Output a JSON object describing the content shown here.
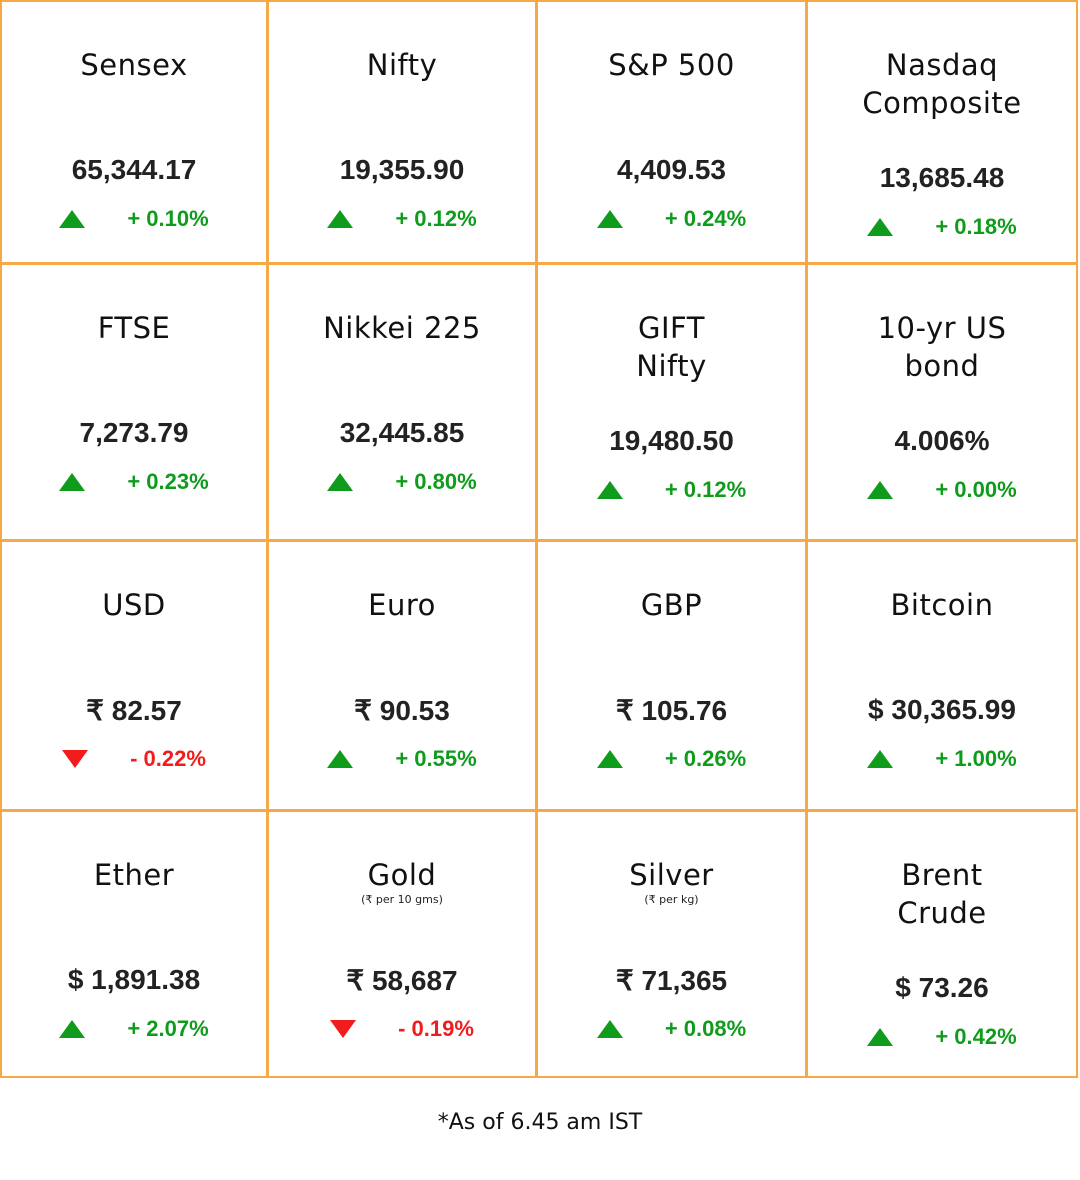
{
  "colors": {
    "border": "#F5A947",
    "up": "#0F9B1C",
    "down": "#F21C1C"
  },
  "cells": [
    {
      "title": "Sensex",
      "value": "65,344.17",
      "direction": "up",
      "change": "+ 0.10%"
    },
    {
      "title": "Nifty",
      "value": "19,355.90",
      "direction": "up",
      "change": "+ 0.12%"
    },
    {
      "title": "S&P 500",
      "value": "4,409.53",
      "direction": "up",
      "change": "+ 0.24%"
    },
    {
      "title": "Nasdaq\nComposite",
      "value": "13,685.48",
      "direction": "up",
      "change": "+ 0.18%"
    },
    {
      "title": "FTSE",
      "value": "7,273.79",
      "direction": "up",
      "change": "+ 0.23%"
    },
    {
      "title": "Nikkei 225",
      "value": "32,445.85",
      "direction": "up",
      "change": "+ 0.80%"
    },
    {
      "title": "GIFT\nNifty",
      "value": "19,480.50",
      "direction": "up",
      "change": "+ 0.12%"
    },
    {
      "title": "10-yr US\nbond",
      "value": "4.006%",
      "direction": "up",
      "change": "+ 0.00%"
    },
    {
      "title": "USD",
      "value": "₹ 82.57",
      "direction": "down",
      "change": "- 0.22%"
    },
    {
      "title": "Euro",
      "value": "₹ 90.53",
      "direction": "up",
      "change": "+ 0.55%"
    },
    {
      "title": "GBP",
      "value": "₹ 105.76",
      "direction": "up",
      "change": "+ 0.26%"
    },
    {
      "title": "Bitcoin",
      "value": "$ 30,365.99",
      "direction": "up",
      "change": "+ 1.00%"
    },
    {
      "title": "Ether",
      "value": "$ 1,891.38",
      "direction": "up",
      "change": "+ 2.07%"
    },
    {
      "title": "Gold",
      "subtitle": "(₹ per 10 gms)",
      "value": "₹ 58,687",
      "direction": "down",
      "change": "- 0.19%"
    },
    {
      "title": "Silver",
      "subtitle": "(₹ per kg)",
      "value": "₹ 71,365",
      "direction": "up",
      "change": "+ 0.08%"
    },
    {
      "title": "Brent\nCrude",
      "value": "$ 73.26",
      "direction": "up",
      "change": "+ 0.42%"
    }
  ],
  "footer": "*As of 6.45 am IST"
}
